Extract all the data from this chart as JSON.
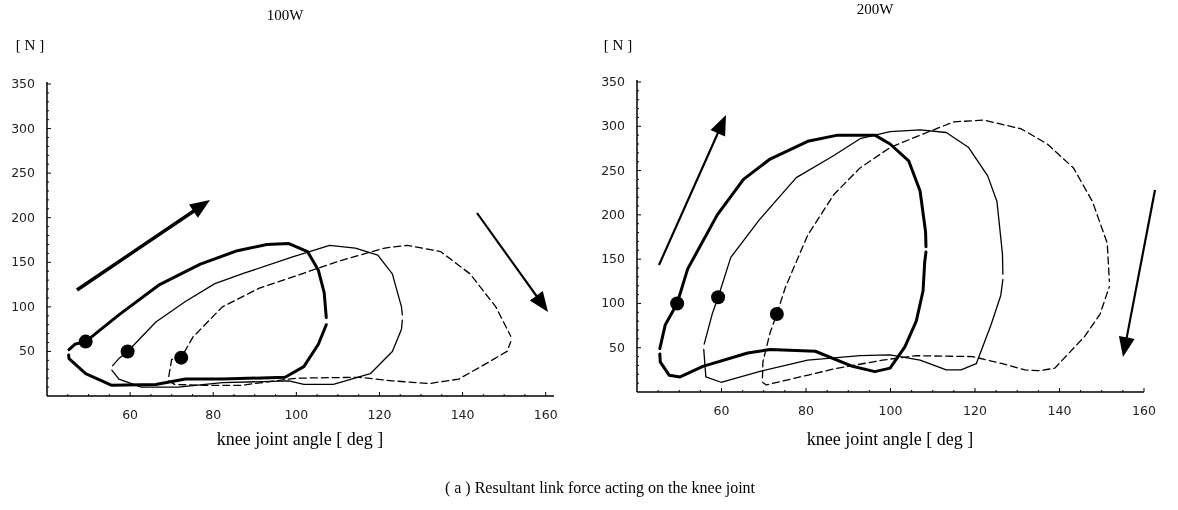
{
  "chart_data": [
    {
      "type": "line",
      "title": "100W",
      "ylabel": "[ N ]",
      "xlabel": "knee joint angle [ deg ]",
      "xlim": [
        40,
        162
      ],
      "ylim": [
        0,
        350
      ],
      "xticks": [
        {
          "value": 45,
          "label": null
        },
        {
          "value": 50,
          "label": null
        },
        {
          "value": 55,
          "label": null
        },
        60,
        {
          "value": 65,
          "label": null
        },
        {
          "value": 70,
          "label": null
        },
        {
          "value": 75,
          "label": null
        },
        80,
        {
          "value": 85,
          "label": null
        },
        {
          "value": 90,
          "label": null
        },
        {
          "value": 95,
          "label": null
        },
        100,
        {
          "value": 105,
          "label": null
        },
        {
          "value": 110,
          "label": null
        },
        {
          "value": 115,
          "label": null
        },
        120,
        {
          "value": 125,
          "label": null
        },
        {
          "value": 130,
          "label": null
        },
        {
          "value": 135,
          "label": null
        },
        140,
        {
          "value": 145,
          "label": null
        },
        {
          "value": 150,
          "label": null
        },
        {
          "value": 155,
          "label": null
        },
        160
      ],
      "yticks": [
        {
          "value": 10,
          "label": null
        },
        {
          "value": 20,
          "label": null
        },
        {
          "value": 30,
          "label": null
        },
        {
          "value": 40,
          "label": null
        },
        50,
        {
          "value": 60,
          "label": null
        },
        {
          "value": 70,
          "label": null
        },
        {
          "value": 80,
          "label": null
        },
        {
          "value": 90,
          "label": null
        },
        100,
        {
          "value": 110,
          "label": null
        },
        {
          "value": 120,
          "label": null
        },
        {
          "value": 130,
          "label": null
        },
        {
          "value": 140,
          "label": null
        },
        150,
        {
          "value": 160,
          "label": null
        },
        {
          "value": 170,
          "label": null
        },
        {
          "value": 180,
          "label": null
        },
        {
          "value": 190,
          "label": null
        },
        200,
        {
          "value": 210,
          "label": null
        },
        {
          "value": 220,
          "label": null
        },
        {
          "value": 230,
          "label": null
        },
        {
          "value": 240,
          "label": null
        },
        250,
        {
          "value": 260,
          "label": null
        },
        {
          "value": 270,
          "label": null
        },
        {
          "value": 280,
          "label": null
        },
        {
          "value": 290,
          "label": null
        },
        300,
        {
          "value": 310,
          "label": null
        },
        {
          "value": 320,
          "label": null
        },
        {
          "value": 330,
          "label": null
        },
        {
          "value": 340,
          "label": null
        },
        350
      ],
      "annotations": [
        "( a ) Resultant link force acting on the knee joint"
      ],
      "series": [
        {
          "color": "#000000",
          "line_style": "solid",
          "x": [
            45.3,
            46.7,
            49.3,
            57.3,
            67.1,
            76.9,
            85.8,
            92.9,
            98.2,
            102.7,
            105.3,
            106.7,
            107.2
          ],
          "values": [
            52,
            58,
            61,
            91,
            125,
            148,
            163,
            170,
            171,
            162,
            141,
            116,
            88
          ]
        },
        {
          "color": "#000000",
          "line_style": "solid",
          "x": [
            45.2,
            45.3,
            49.3,
            55.6,
            66.2,
            73.3,
            82.2,
            97.3,
            101.8,
            105.3,
            107.2
          ],
          "values": [
            46,
            42,
            25,
            12,
            13,
            19,
            19,
            21,
            33,
            58,
            80
          ]
        },
        {
          "color": "#000000",
          "line_style": "solid",
          "x": [
            55.8,
            57.3,
            59.4,
            66.2,
            73.3,
            80.4,
            87.6,
            99.1,
            108,
            114.2,
            119.6,
            123.1,
            125.3,
            125.5
          ],
          "values": [
            34,
            42,
            50,
            83,
            106,
            126,
            138,
            156,
            169,
            166,
            158,
            137,
            100,
            91
          ]
        },
        {
          "color": "#000000",
          "line_style": "solid",
          "x": [
            55.6,
            57.3,
            62.7,
            71.6,
            82.2,
            98.2,
            101.8,
            108.9,
            117.8,
            123.1,
            125.3,
            125.5
          ],
          "values": [
            29,
            19,
            10,
            10,
            15,
            17,
            13,
            13,
            25,
            50,
            75,
            85
          ]
        },
        {
          "color": "#000000",
          "line_style": "dashed",
          "x": [
            69.3,
            70,
            72.3,
            75.1,
            82.2,
            91.1,
            100,
            110.7,
            121.3,
            126.7,
            134.7,
            141.8,
            148,
            151.6
          ],
          "values": [
            22,
            41,
            43,
            66,
            100,
            121,
            135,
            152,
            166,
            169,
            162,
            137,
            100,
            67
          ]
        },
        {
          "color": "#000000",
          "line_style": "dashed",
          "x": [
            69.3,
            70.7,
            77.8,
            86.7,
            100,
            115.1,
            123.1,
            132,
            139.1,
            144.4,
            150.7,
            151.6
          ],
          "values": [
            17,
            13,
            12,
            12,
            20,
            21,
            17,
            14,
            19,
            33,
            50,
            61
          ]
        },
        {
          "type": "scatter",
          "color": "#000000",
          "marker": "circle",
          "x": [
            49.3,
            59.4,
            72.3
          ],
          "values": [
            61,
            50,
            43
          ]
        }
      ]
    },
    {
      "type": "line",
      "title": "200W",
      "ylabel": "[ N ]",
      "xlabel": "knee joint angle [ deg ]",
      "xlim": [
        40,
        160
      ],
      "ylim": [
        0,
        350
      ],
      "xticks": [
        {
          "value": 45,
          "label": null
        },
        {
          "value": 50,
          "label": null
        },
        {
          "value": 55,
          "label": null
        },
        60,
        {
          "value": 65,
          "label": null
        },
        {
          "value": 70,
          "label": null
        },
        {
          "value": 75,
          "label": null
        },
        80,
        {
          "value": 85,
          "label": null
        },
        {
          "value": 90,
          "label": null
        },
        {
          "value": 95,
          "label": null
        },
        100,
        {
          "value": 105,
          "label": null
        },
        {
          "value": 110,
          "label": null
        },
        {
          "value": 115,
          "label": null
        },
        120,
        {
          "value": 125,
          "label": null
        },
        {
          "value": 130,
          "label": null
        },
        {
          "value": 135,
          "label": null
        },
        140,
        {
          "value": 145,
          "label": null
        },
        {
          "value": 150,
          "label": null
        },
        {
          "value": 155,
          "label": null
        },
        160
      ],
      "yticks": [
        {
          "value": 10,
          "label": null
        },
        {
          "value": 20,
          "label": null
        },
        {
          "value": 30,
          "label": null
        },
        {
          "value": 40,
          "label": null
        },
        50,
        {
          "value": 60,
          "label": null
        },
        {
          "value": 70,
          "label": null
        },
        {
          "value": 80,
          "label": null
        },
        {
          "value": 90,
          "label": null
        },
        100,
        {
          "value": 110,
          "label": null
        },
        {
          "value": 120,
          "label": null
        },
        {
          "value": 130,
          "label": null
        },
        {
          "value": 140,
          "label": null
        },
        150,
        {
          "value": 160,
          "label": null
        },
        {
          "value": 170,
          "label": null
        },
        {
          "value": 180,
          "label": null
        },
        {
          "value": 190,
          "label": null
        },
        200,
        {
          "value": 210,
          "label": null
        },
        {
          "value": 220,
          "label": null
        },
        {
          "value": 230,
          "label": null
        },
        {
          "value": 240,
          "label": null
        },
        250,
        {
          "value": 260,
          "label": null
        },
        {
          "value": 270,
          "label": null
        },
        {
          "value": 280,
          "label": null
        },
        {
          "value": 290,
          "label": null
        },
        300,
        {
          "value": 310,
          "label": null
        },
        {
          "value": 320,
          "label": null
        },
        {
          "value": 330,
          "label": null
        },
        {
          "value": 340,
          "label": null
        },
        350
      ],
      "series": [
        {
          "color": "#000000",
          "line_style": "solid",
          "x": [
            45.4,
            46.7,
            49.5,
            52,
            59,
            65.2,
            71.5,
            80.4,
            87.5,
            96.3,
            99.9,
            104.3,
            107,
            108.3,
            108.4
          ],
          "values": [
            49,
            76,
            100,
            139,
            200,
            240,
            263,
            283,
            290,
            290,
            280,
            261,
            227,
            181,
            164
          ]
        },
        {
          "color": "#000000",
          "line_style": "solid",
          "x": [
            45.4,
            45.5,
            47.6,
            50.2,
            55.6,
            66.2,
            71.5,
            82.2,
            91,
            96.3,
            99.9,
            103.4,
            106.1,
            107.7,
            108.1,
            108.4
          ],
          "values": [
            43,
            34,
            19,
            17,
            29,
            44,
            48,
            46,
            29,
            23,
            27,
            51,
            80,
            114,
            147,
            158
          ]
        },
        {
          "color": "#000000",
          "line_style": "solid",
          "x": [
            55.9,
            57.8,
            59.2,
            62.2,
            68.9,
            77.7,
            86.6,
            92.8,
            99.9,
            107,
            113.2,
            118.5,
            123,
            125.2,
            126.5,
            126.6
          ],
          "values": [
            54,
            88,
            107,
            152,
            194,
            242,
            267,
            286,
            294,
            296,
            293,
            276,
            244,
            215,
            156,
            133
          ]
        },
        {
          "color": "#000000",
          "line_style": "solid",
          "x": [
            55.8,
            56.3,
            59.9,
            68.9,
            80.4,
            92.8,
            99.9,
            107,
            113.2,
            116.7,
            120.3,
            123.8,
            126.1,
            126.6
          ],
          "values": [
            48,
            17,
            11,
            23,
            36,
            41,
            42,
            36,
            25,
            25,
            32,
            76,
            109,
            127
          ]
        },
        {
          "color": "#000000",
          "line_style": "dashed",
          "x": [
            69.7,
            69.8,
            71.5,
            73.1,
            75.1,
            80.4,
            86.6,
            92.8,
            99.9,
            107,
            115,
            122.1,
            131,
            137.1,
            143.3,
            147.8,
            151.3,
            151.8
          ],
          "values": [
            16,
            34,
            67,
            88,
            118,
            177,
            223,
            253,
            276,
            290,
            305,
            307,
            297,
            280,
            253,
            215,
            168,
            125
          ]
        },
        {
          "color": "#000000",
          "line_style": "dashed",
          "x": [
            69.7,
            70.6,
            78.6,
            86.6,
            98.1,
            106.1,
            119.4,
            126.5,
            131.8,
            135.4,
            138.9,
            146,
            149.6,
            151.8
          ],
          "values": [
            11,
            8,
            17,
            26,
            36,
            41,
            40,
            32,
            25,
            24,
            27,
            63,
            88,
            119
          ]
        },
        {
          "type": "scatter",
          "color": "#000000",
          "marker": "circle",
          "x": [
            49.5,
            59.2,
            73.1
          ],
          "values": [
            100,
            107,
            88
          ]
        }
      ]
    }
  ]
}
